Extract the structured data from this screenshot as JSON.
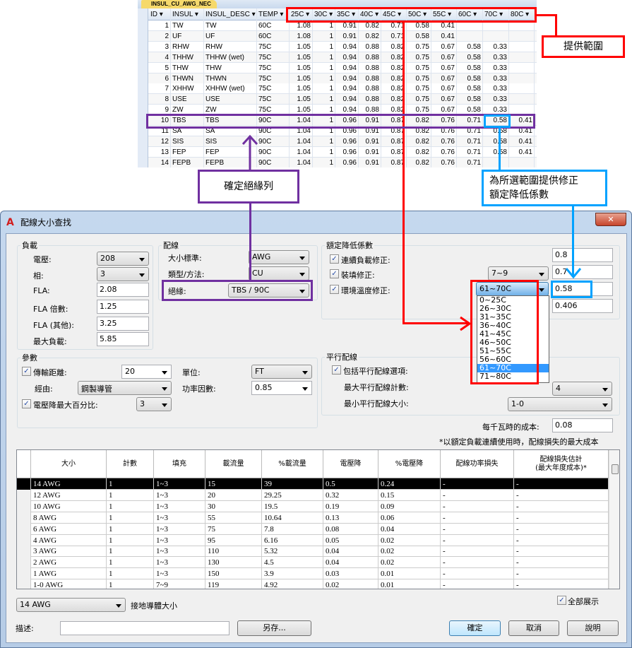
{
  "sheet": {
    "tab": "INSUL_CU_AWG_NEC",
    "columns": [
      "ID",
      "INSUL",
      "INSUL_DESC",
      "TEMP",
      "25C",
      "30C",
      "35C",
      "40C",
      "45C",
      "50C",
      "55C",
      "60C",
      "70C",
      "80C"
    ],
    "rows": [
      [
        "1",
        "TW",
        "TW",
        "60C",
        "1.08",
        "1",
        "0.91",
        "0.82",
        "0.71",
        "0.58",
        "0.41",
        "",
        "",
        ""
      ],
      [
        "2",
        "UF",
        "UF",
        "60C",
        "1.08",
        "1",
        "0.91",
        "0.82",
        "0.71",
        "0.58",
        "0.41",
        "",
        "",
        ""
      ],
      [
        "3",
        "RHW",
        "RHW",
        "75C",
        "1.05",
        "1",
        "0.94",
        "0.88",
        "0.82",
        "0.75",
        "0.67",
        "0.58",
        "0.33",
        ""
      ],
      [
        "4",
        "THHW",
        "THHW (wet)",
        "75C",
        "1.05",
        "1",
        "0.94",
        "0.88",
        "0.82",
        "0.75",
        "0.67",
        "0.58",
        "0.33",
        ""
      ],
      [
        "5",
        "THW",
        "THW",
        "75C",
        "1.05",
        "1",
        "0.94",
        "0.88",
        "0.82",
        "0.75",
        "0.67",
        "0.58",
        "0.33",
        ""
      ],
      [
        "6",
        "THWN",
        "THWN",
        "75C",
        "1.05",
        "1",
        "0.94",
        "0.88",
        "0.82",
        "0.75",
        "0.67",
        "0.58",
        "0.33",
        ""
      ],
      [
        "7",
        "XHHW",
        "XHHW (wet)",
        "75C",
        "1.05",
        "1",
        "0.94",
        "0.88",
        "0.82",
        "0.75",
        "0.67",
        "0.58",
        "0.33",
        ""
      ],
      [
        "8",
        "USE",
        "USE",
        "75C",
        "1.05",
        "1",
        "0.94",
        "0.88",
        "0.82",
        "0.75",
        "0.67",
        "0.58",
        "0.33",
        ""
      ],
      [
        "9",
        "ZW",
        "ZW",
        "75C",
        "1.05",
        "1",
        "0.94",
        "0.88",
        "0.82",
        "0.75",
        "0.67",
        "0.58",
        "0.33",
        ""
      ],
      [
        "10",
        "TBS",
        "TBS",
        "90C",
        "1.04",
        "1",
        "0.96",
        "0.91",
        "0.87",
        "0.82",
        "0.76",
        "0.71",
        "0.58",
        "0.41"
      ],
      [
        "11",
        "SA",
        "SA",
        "90C",
        "1.04",
        "1",
        "0.96",
        "0.91",
        "0.87",
        "0.82",
        "0.76",
        "0.71",
        "0.58",
        "0.41"
      ],
      [
        "12",
        "SIS",
        "SIS",
        "90C",
        "1.04",
        "1",
        "0.96",
        "0.91",
        "0.87",
        "0.82",
        "0.76",
        "0.71",
        "0.58",
        "0.41"
      ],
      [
        "13",
        "FEP",
        "FEP",
        "90C",
        "1.04",
        "1",
        "0.96",
        "0.91",
        "0.87",
        "0.82",
        "0.76",
        "0.71",
        "0.58",
        "0.41"
      ],
      [
        "14",
        "FEPB",
        "FEPB",
        "90C",
        "1.04",
        "1",
        "0.96",
        "0.91",
        "0.87",
        "0.82",
        "0.76",
        "0.71",
        "",
        ""
      ]
    ]
  },
  "annotations": {
    "range": "提供範圍",
    "row": "確定絕緣列",
    "factor": "為所選範圍提供修正\n額定降低係數",
    "colors": {
      "red": "#ff0000",
      "purple": "#7030a0",
      "blue": "#00a2ff"
    }
  },
  "dialog": {
    "title": "配線大小查找",
    "load": {
      "title": "負載",
      "voltage_label": "電壓:",
      "voltage": "208",
      "phase_label": "相:",
      "phase": "3",
      "fla_label": "FLA:",
      "fla": "2.08",
      "fla_mult_label": "FLA 倍數:",
      "fla_mult": "1.25",
      "fla_other_label": "FLA (其他):",
      "fla_other": "3.25",
      "max_load_label": "最大負載:",
      "max_load": "5.85"
    },
    "wire": {
      "title": "配線",
      "size_std_label": "大小標準:",
      "size_std": "AWG",
      "type_label": "類型/方法:",
      "type": "CU",
      "insul_label": "絕緣:",
      "insul": "TBS / 90C"
    },
    "derate": {
      "title": "額定降低係數",
      "cont_label": "連續負載修正:",
      "cont": "0.8",
      "fill_label": "裝填修正:",
      "fill_sel": "7~9",
      "fill": "0.7",
      "temp_label": "環境溫度修正:",
      "temp_sel": "61~70C",
      "temp": "0.58",
      "total": "0.406",
      "temp_options": [
        "0~25C",
        "26~30C",
        "31~35C",
        "36~40C",
        "41~45C",
        "46~50C",
        "51~55C",
        "56~60C",
        "61~70C",
        "71~80C"
      ],
      "temp_selected": "61~70C"
    },
    "params": {
      "title": "參數",
      "dist_label": "傳輸距離:",
      "dist": "20",
      "unit_label": "單位:",
      "unit": "FT",
      "via_label": "經由:",
      "via": "鋼製導管",
      "pf_label": "功率因數:",
      "pf": "0.85",
      "vd_label": "電壓降最大百分比:",
      "vd": "3"
    },
    "parallel": {
      "title": "平行配線",
      "include_label": "包括平行配線選項:",
      "max_count_label": "最大平行配線計數:",
      "max_count": "4",
      "min_size_label": "最小平行配線大小:",
      "min_size": "1-0"
    },
    "cost_label": "每千瓦時的成本:",
    "cost": "0.08",
    "note": "*以額定負載連續使用時，配線損失的最大成本",
    "grid": {
      "columns": [
        "大小",
        "計數",
        "填充",
        "載流量",
        "%載流量",
        "電壓降",
        "%電壓降",
        "配線功率損失",
        "配線損失估計\n(最大年度成本)*"
      ],
      "rows": [
        [
          "14 AWG",
          "1",
          "1~3",
          "15",
          "39",
          "0.5",
          "0.24",
          "-",
          "-"
        ],
        [
          "12 AWG",
          "1",
          "1~3",
          "20",
          "29.25",
          "0.32",
          "0.15",
          "-",
          "-"
        ],
        [
          "10 AWG",
          "1",
          "1~3",
          "30",
          "19.5",
          "0.19",
          "0.09",
          "-",
          "-"
        ],
        [
          "8 AWG",
          "1",
          "1~3",
          "55",
          "10.64",
          "0.13",
          "0.06",
          "-",
          "-"
        ],
        [
          "6 AWG",
          "1",
          "1~3",
          "75",
          "7.8",
          "0.08",
          "0.04",
          "-",
          "-"
        ],
        [
          "4 AWG",
          "1",
          "1~3",
          "95",
          "6.16",
          "0.05",
          "0.02",
          "-",
          "-"
        ],
        [
          "3 AWG",
          "1",
          "1~3",
          "110",
          "5.32",
          "0.04",
          "0.02",
          "-",
          "-"
        ],
        [
          "2 AWG",
          "1",
          "1~3",
          "130",
          "4.5",
          "0.04",
          "0.02",
          "-",
          "-"
        ],
        [
          "1 AWG",
          "1",
          "1~3",
          "150",
          "3.9",
          "0.03",
          "0.01",
          "-",
          "-"
        ],
        [
          "1-0 AWG",
          "1",
          "7~9",
          "119",
          "4.92",
          "0.02",
          "0.01",
          "-",
          "-"
        ]
      ]
    },
    "ground_size": "14 AWG",
    "ground_label": "接地導體大小",
    "show_all_label": "全部展示",
    "desc_label": "描述:",
    "desc": "",
    "save_as": "另存...",
    "ok": "確定",
    "cancel": "取消",
    "help": "說明"
  }
}
